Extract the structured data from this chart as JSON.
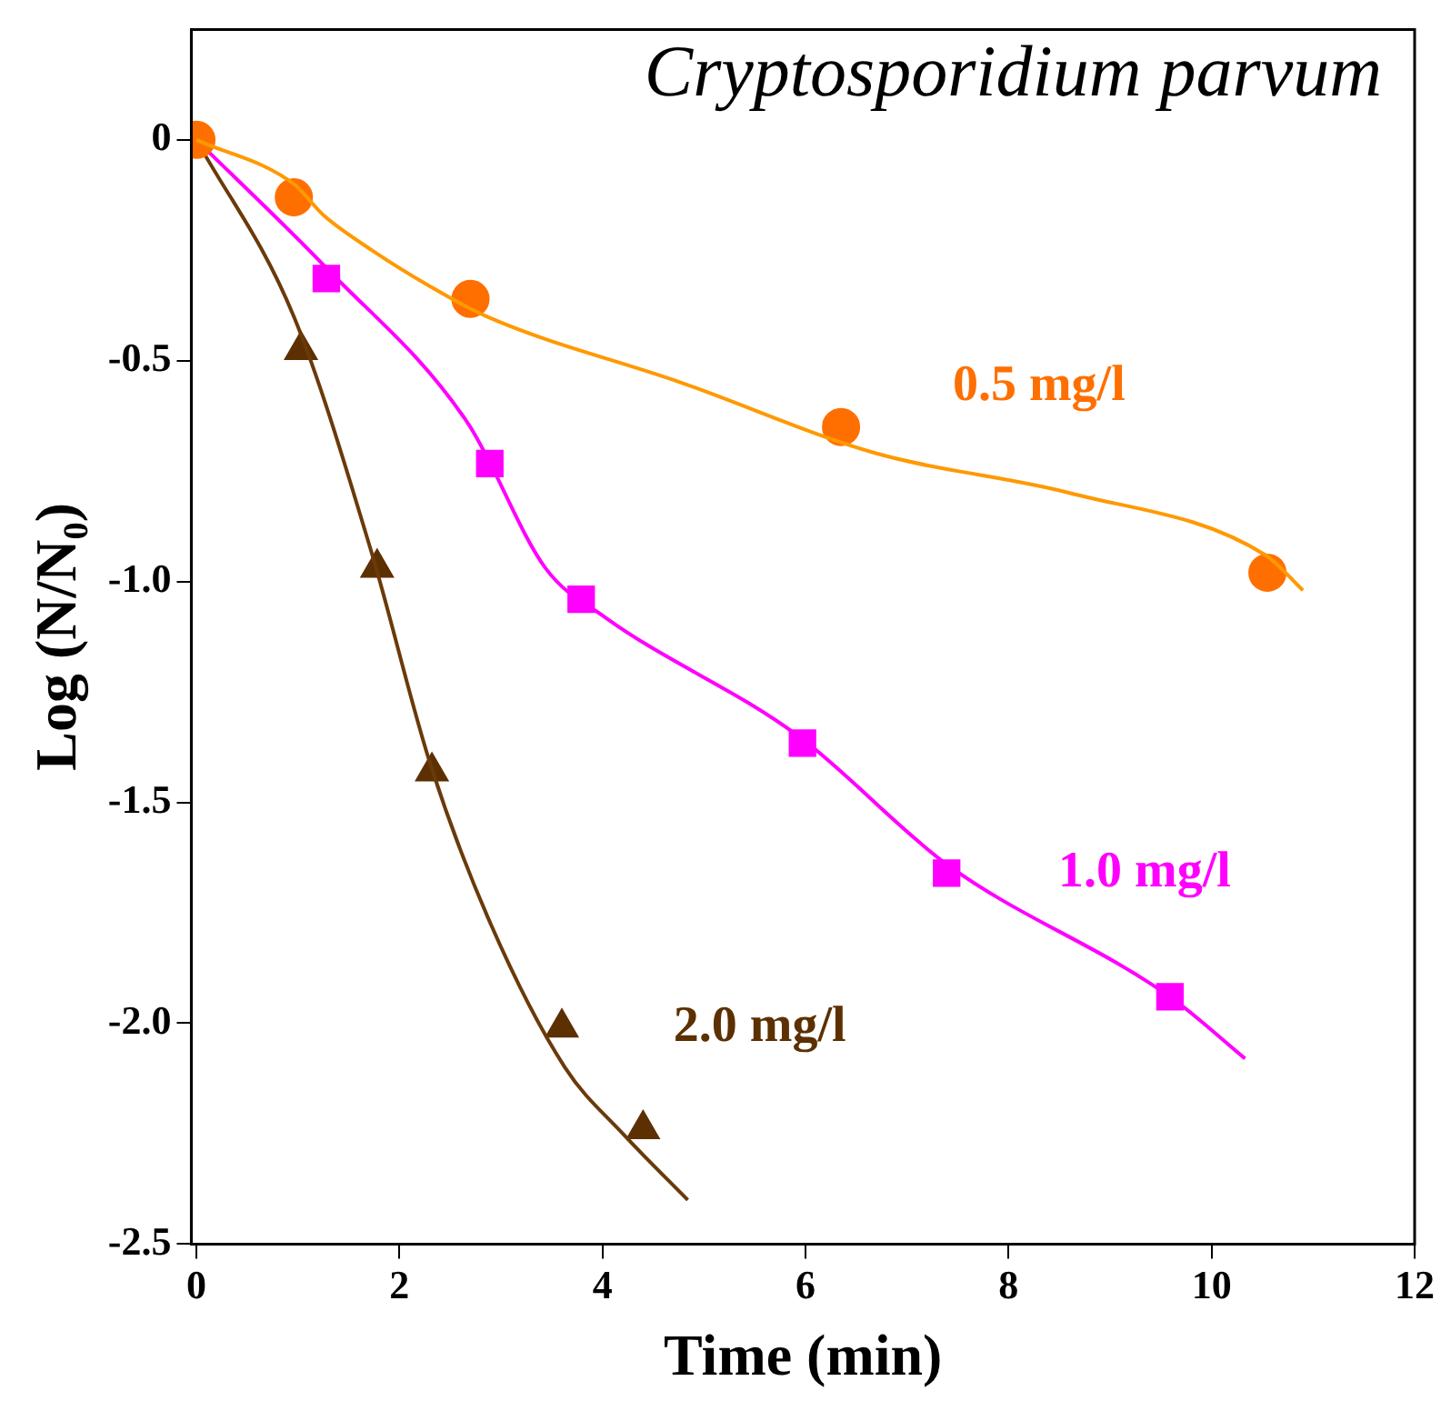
{
  "chart_data": {
    "type": "scatter",
    "title": "Cryptosporidium parvum",
    "xlabel": "Time (min)",
    "ylabel": "Log (N/N₀)",
    "xlim": [
      -0.05,
      12
    ],
    "xticks": [
      0,
      2,
      4,
      6,
      8,
      10,
      12
    ],
    "ylim": [
      -2.5,
      0.25
    ],
    "yticks": [
      0,
      -0.5,
      {
        "value": -1,
        "label": "-1.0"
      },
      -1.5,
      {
        "value": -2,
        "label": "-2.0"
      },
      -2.5
    ],
    "legend": false,
    "series": [
      {
        "type": "line",
        "color": "#ff9900",
        "marker": "none",
        "x": [
          0,
          0.96,
          1.25,
          1.73,
          2.29,
          2.86,
          4.78,
          6.7,
          8.61,
          10.53,
          10.9
        ],
        "values": [
          0,
          -0.1,
          -0.17,
          -0.25,
          -0.33,
          -0.4,
          -0.55,
          -0.71,
          -0.8,
          -0.94,
          -1.02
        ]
      },
      {
        "name": "0.5 mg/l",
        "color": "#ff6f00",
        "marker": "circle",
        "x": [
          0,
          0.96,
          2.7,
          6.35,
          10.55
        ],
        "values": [
          0,
          -0.13,
          -0.36,
          -0.65,
          -0.98
        ]
      },
      {
        "type": "line",
        "color": "#ff00ff",
        "marker": "none",
        "x": [
          0,
          1.28,
          2.67,
          3.44,
          4.02,
          5.93,
          7.39,
          9.59,
          10.33
        ],
        "values": [
          0,
          -0.29,
          -0.64,
          -0.97,
          -1.08,
          -1.35,
          -1.64,
          -1.94,
          -2.08
        ]
      },
      {
        "name": "1.0 mg/l",
        "color": "#ff00ff",
        "marker": "square",
        "x": [
          1.28,
          2.89,
          3.79,
          5.97,
          7.39,
          9.59
        ],
        "values": [
          -0.314,
          -0.733,
          -1.04,
          -1.366,
          -1.66,
          -1.94
        ]
      },
      {
        "type": "line",
        "color": "#6b3a0a",
        "marker": "none",
        "x": [
          0,
          0.96,
          1.72,
          2.3,
          2.87,
          3.63,
          4.2,
          4.84
        ],
        "values": [
          0,
          -0.4,
          -0.93,
          -1.41,
          -1.76,
          -2.1,
          -2.25,
          -2.4
        ]
      },
      {
        "name": "2.0 mg/l",
        "color": "#5c3000",
        "marker": "triangle",
        "x": [
          1.03,
          1.78,
          2.32,
          3.6,
          4.4
        ],
        "values": [
          -0.476,
          -0.969,
          -1.43,
          -2.01,
          -2.24
        ]
      }
    ]
  }
}
